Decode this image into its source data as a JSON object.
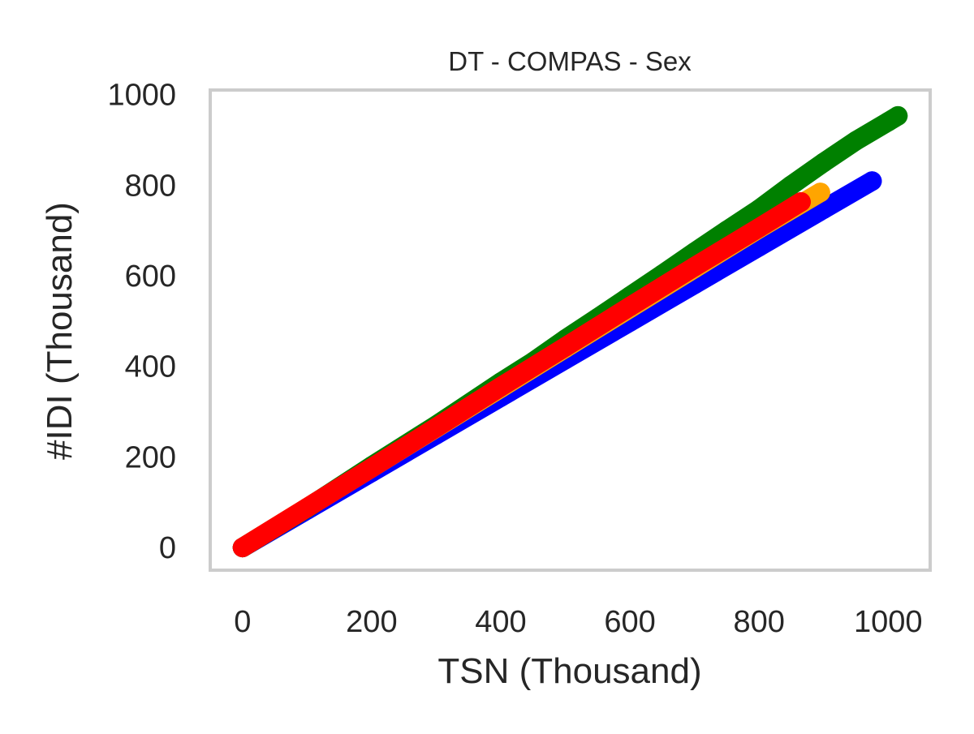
{
  "chart_data": {
    "type": "scatter",
    "title": "DT - COMPAS - Sex",
    "xlabel": "TSN (Thousand)",
    "ylabel": "#IDI (Thousand)",
    "xlim": [
      -50,
      1065
    ],
    "ylim": [
      -50,
      1010
    ],
    "xticks": [
      0,
      200,
      400,
      600,
      800,
      1000
    ],
    "yticks": [
      0,
      200,
      400,
      600,
      800,
      1000
    ],
    "grid": false,
    "legend": "none",
    "colors": {
      "frame": "#cccccc",
      "text": "#262626",
      "background": "#ffffff"
    },
    "series": [
      {
        "color": "#0000ff",
        "points": [
          [
            0,
            0
          ],
          [
            100,
            83
          ],
          [
            200,
            166
          ],
          [
            300,
            249
          ],
          [
            400,
            332
          ],
          [
            500,
            415
          ],
          [
            600,
            498
          ],
          [
            700,
            581
          ],
          [
            800,
            664
          ],
          [
            900,
            747
          ],
          [
            975,
            809
          ]
        ]
      },
      {
        "color": "#ffa500",
        "points": [
          [
            0,
            0
          ],
          [
            100,
            88
          ],
          [
            200,
            176
          ],
          [
            300,
            264
          ],
          [
            400,
            352
          ],
          [
            500,
            440
          ],
          [
            600,
            528
          ],
          [
            700,
            616
          ],
          [
            800,
            704
          ],
          [
            895,
            784
          ]
        ]
      },
      {
        "color": "#008000",
        "points": [
          [
            0,
            0
          ],
          [
            100,
            87
          ],
          [
            200,
            180
          ],
          [
            300,
            270
          ],
          [
            400,
            365
          ],
          [
            450,
            410
          ],
          [
            500,
            460
          ],
          [
            550,
            507
          ],
          [
            600,
            555
          ],
          [
            650,
            603
          ],
          [
            700,
            652
          ],
          [
            750,
            700
          ],
          [
            800,
            747
          ],
          [
            850,
            800
          ],
          [
            900,
            850
          ],
          [
            950,
            898
          ],
          [
            1000,
            940
          ],
          [
            1015,
            953
          ]
        ]
      },
      {
        "color": "#ff0000",
        "points": [
          [
            0,
            0
          ],
          [
            100,
            88
          ],
          [
            200,
            176
          ],
          [
            300,
            265
          ],
          [
            400,
            355
          ],
          [
            500,
            443
          ],
          [
            600,
            532
          ],
          [
            700,
            620
          ],
          [
            800,
            706
          ],
          [
            865,
            763
          ]
        ]
      }
    ]
  }
}
